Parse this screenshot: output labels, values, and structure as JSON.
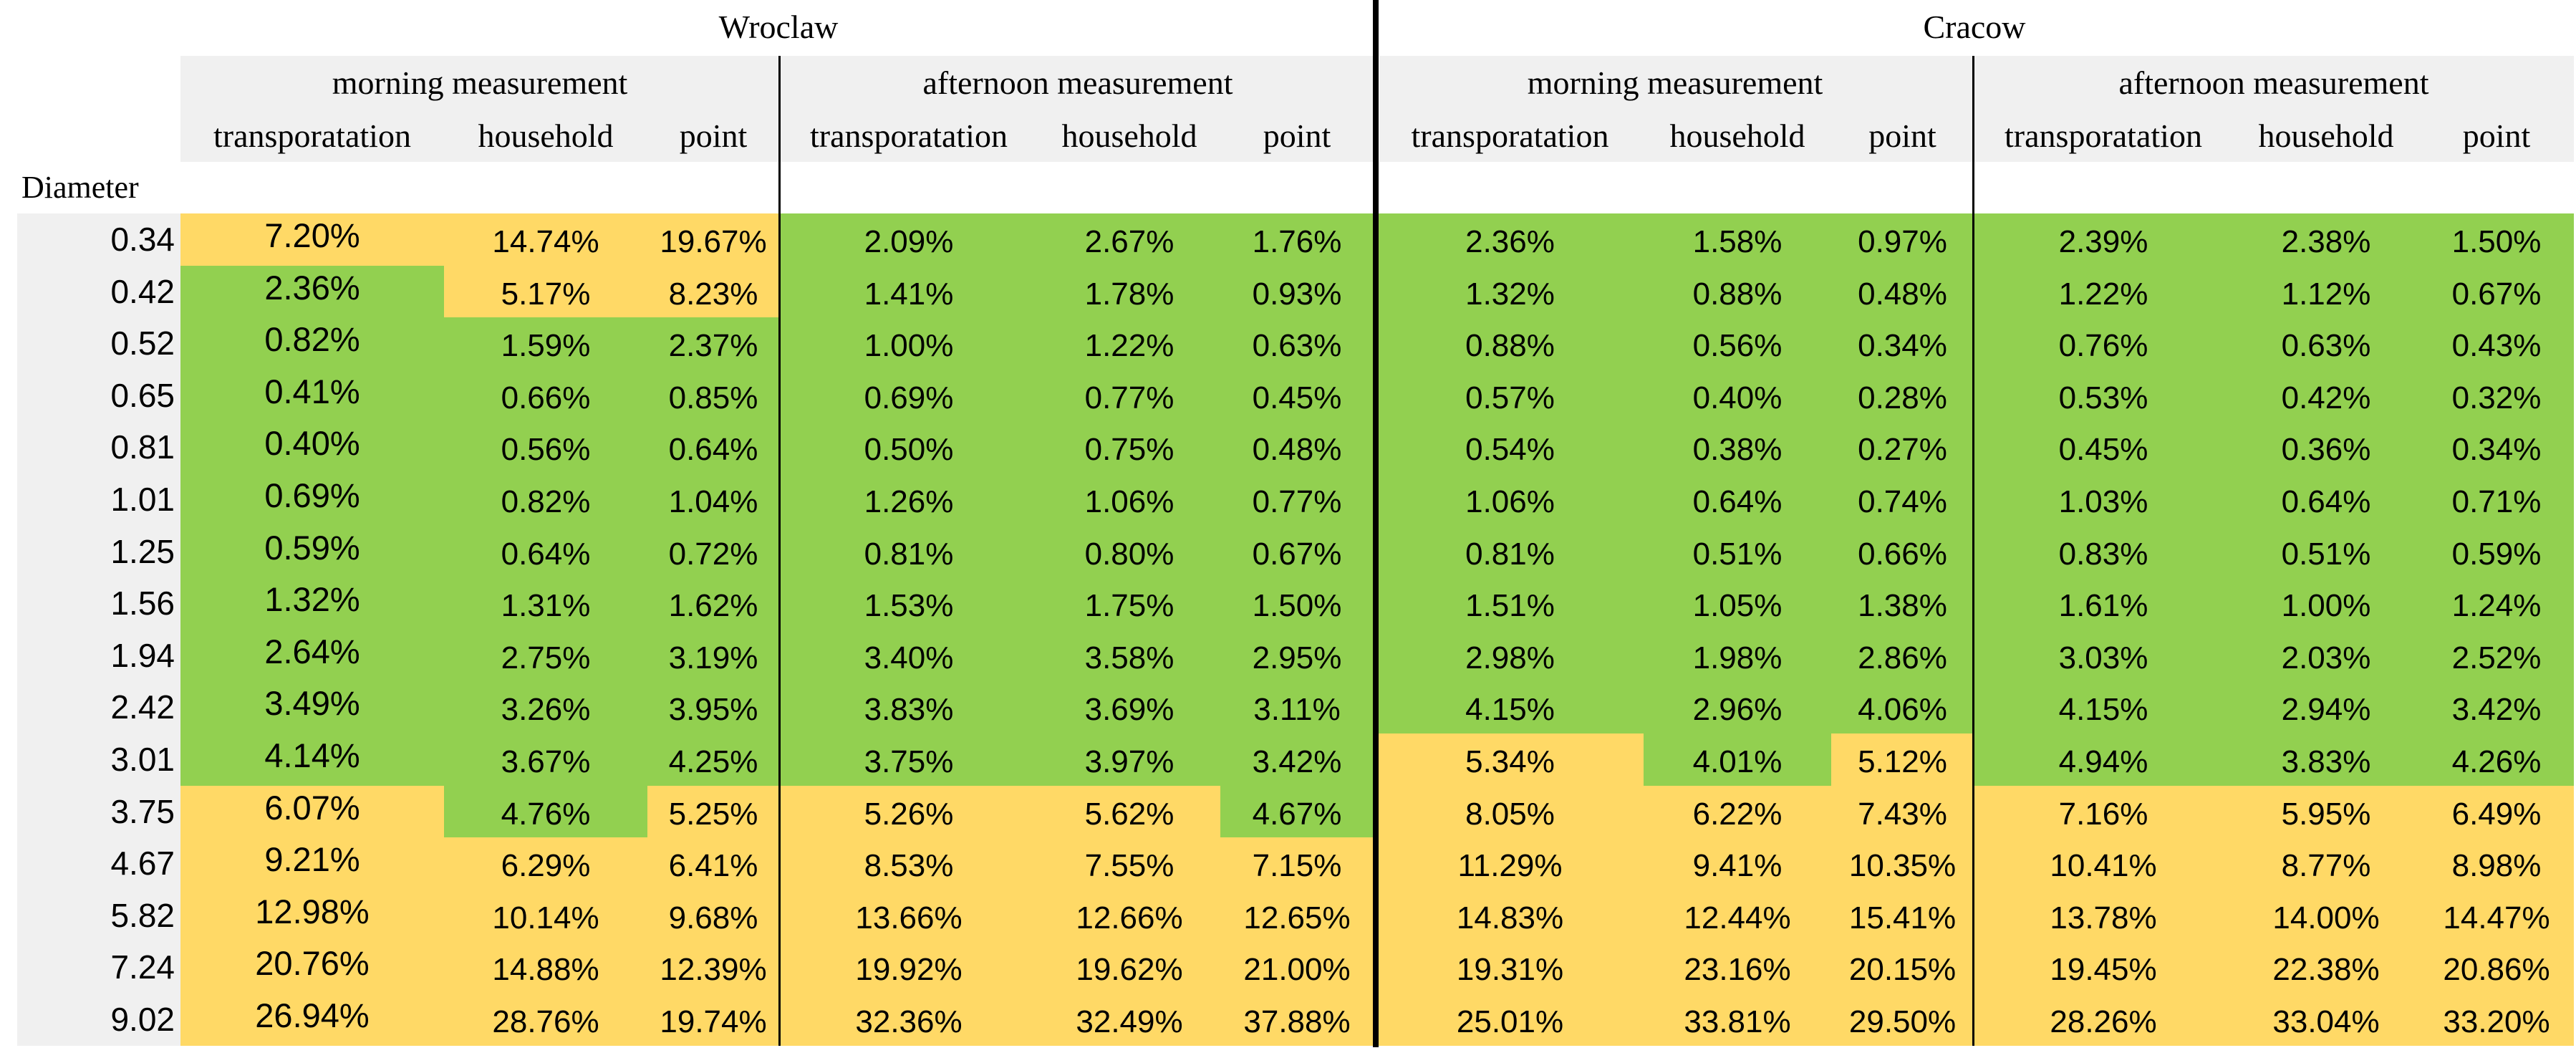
{
  "cities": [
    "Wroclaw",
    "Cracow"
  ],
  "measurements": [
    "morning measurement",
    "afternoon measurement",
    "morning measurement",
    "afternoon measurement"
  ],
  "columns": [
    "transporatation",
    "household",
    "point"
  ],
  "diameter_label": "Diameter",
  "colors": {
    "green": "#92d050",
    "yellow": "#ffd966",
    "header_gray": "#f0f0f0"
  },
  "rows": [
    {
      "d": "0.34",
      "v": [
        "7.20%",
        "14.74%",
        "19.67%",
        "2.09%",
        "2.67%",
        "1.76%",
        "2.36%",
        "1.58%",
        "0.97%",
        "2.39%",
        "2.38%",
        "1.50%"
      ],
      "c": "yyyggggggggg"
    },
    {
      "d": "0.42",
      "v": [
        "2.36%",
        "5.17%",
        "8.23%",
        "1.41%",
        "1.78%",
        "0.93%",
        "1.32%",
        "0.88%",
        "0.48%",
        "1.22%",
        "1.12%",
        "0.67%"
      ],
      "c": "gyyggggggggg"
    },
    {
      "d": "0.52",
      "v": [
        "0.82%",
        "1.59%",
        "2.37%",
        "1.00%",
        "1.22%",
        "0.63%",
        "0.88%",
        "0.56%",
        "0.34%",
        "0.76%",
        "0.63%",
        "0.43%"
      ],
      "c": "gggggggggggg"
    },
    {
      "d": "0.65",
      "v": [
        "0.41%",
        "0.66%",
        "0.85%",
        "0.69%",
        "0.77%",
        "0.45%",
        "0.57%",
        "0.40%",
        "0.28%",
        "0.53%",
        "0.42%",
        "0.32%"
      ],
      "c": "gggggggggggg"
    },
    {
      "d": "0.81",
      "v": [
        "0.40%",
        "0.56%",
        "0.64%",
        "0.50%",
        "0.75%",
        "0.48%",
        "0.54%",
        "0.38%",
        "0.27%",
        "0.45%",
        "0.36%",
        "0.34%"
      ],
      "c": "gggggggggggg"
    },
    {
      "d": "1.01",
      "v": [
        "0.69%",
        "0.82%",
        "1.04%",
        "1.26%",
        "1.06%",
        "0.77%",
        "1.06%",
        "0.64%",
        "0.74%",
        "1.03%",
        "0.64%",
        "0.71%"
      ],
      "c": "gggggggggggg"
    },
    {
      "d": "1.25",
      "v": [
        "0.59%",
        "0.64%",
        "0.72%",
        "0.81%",
        "0.80%",
        "0.67%",
        "0.81%",
        "0.51%",
        "0.66%",
        "0.83%",
        "0.51%",
        "0.59%"
      ],
      "c": "gggggggggggg"
    },
    {
      "d": "1.56",
      "v": [
        "1.32%",
        "1.31%",
        "1.62%",
        "1.53%",
        "1.75%",
        "1.50%",
        "1.51%",
        "1.05%",
        "1.38%",
        "1.61%",
        "1.00%",
        "1.24%"
      ],
      "c": "gggggggggggg"
    },
    {
      "d": "1.94",
      "v": [
        "2.64%",
        "2.75%",
        "3.19%",
        "3.40%",
        "3.58%",
        "2.95%",
        "2.98%",
        "1.98%",
        "2.86%",
        "3.03%",
        "2.03%",
        "2.52%"
      ],
      "c": "gggggggggggg"
    },
    {
      "d": "2.42",
      "v": [
        "3.49%",
        "3.26%",
        "3.95%",
        "3.83%",
        "3.69%",
        "3.11%",
        "4.15%",
        "2.96%",
        "4.06%",
        "4.15%",
        "2.94%",
        "3.42%"
      ],
      "c": "gggggggggggg"
    },
    {
      "d": "3.01",
      "v": [
        "4.14%",
        "3.67%",
        "4.25%",
        "3.75%",
        "3.97%",
        "3.42%",
        "5.34%",
        "4.01%",
        "5.12%",
        "4.94%",
        "3.83%",
        "4.26%"
      ],
      "c": "ggggggygyggg"
    },
    {
      "d": "3.75",
      "v": [
        "6.07%",
        "4.76%",
        "5.25%",
        "5.26%",
        "5.62%",
        "4.67%",
        "8.05%",
        "6.22%",
        "7.43%",
        "7.16%",
        "5.95%",
        "6.49%"
      ],
      "c": "ygyyygyyyyyy"
    },
    {
      "d": "4.67",
      "v": [
        "9.21%",
        "6.29%",
        "6.41%",
        "8.53%",
        "7.55%",
        "7.15%",
        "11.29%",
        "9.41%",
        "10.35%",
        "10.41%",
        "8.77%",
        "8.98%"
      ],
      "c": "yyyyyyyyyyyy"
    },
    {
      "d": "5.82",
      "v": [
        "12.98%",
        "10.14%",
        "9.68%",
        "13.66%",
        "12.66%",
        "12.65%",
        "14.83%",
        "12.44%",
        "15.41%",
        "13.78%",
        "14.00%",
        "14.47%"
      ],
      "c": "yyyyyyyyyyyy"
    },
    {
      "d": "7.24",
      "v": [
        "20.76%",
        "14.88%",
        "12.39%",
        "19.92%",
        "19.62%",
        "21.00%",
        "19.31%",
        "23.16%",
        "20.15%",
        "19.45%",
        "22.38%",
        "20.86%"
      ],
      "c": "yyyyyyyyyyyy"
    },
    {
      "d": "9.02",
      "v": [
        "26.94%",
        "28.76%",
        "19.74%",
        "32.36%",
        "32.49%",
        "37.88%",
        "25.01%",
        "33.81%",
        "29.50%",
        "28.26%",
        "33.04%",
        "33.20%"
      ],
      "c": "yyyyyyyyyyyy"
    }
  ]
}
